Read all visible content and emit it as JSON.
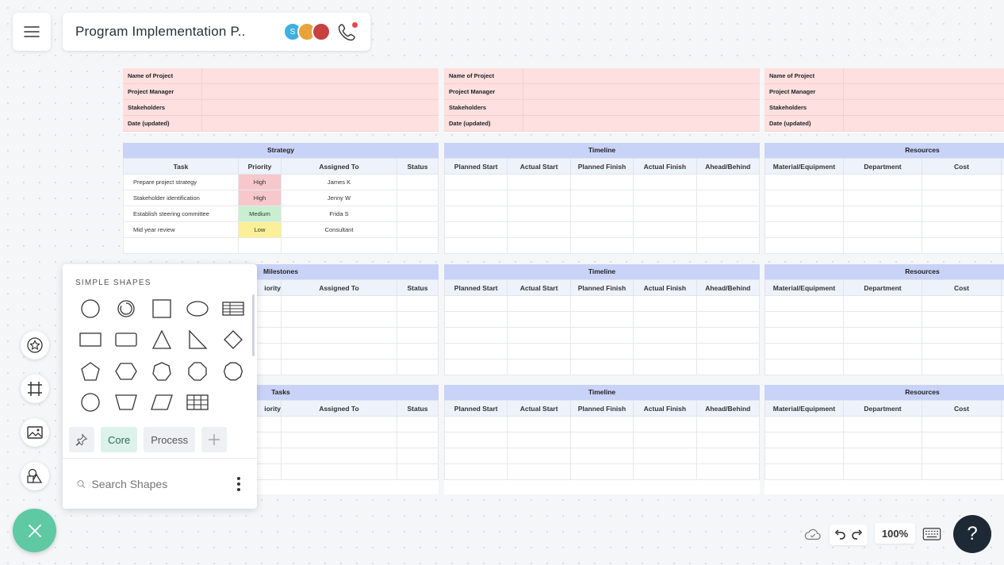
{
  "header": {
    "title": "Program Implementation P..",
    "avatars": [
      {
        "initial": "S"
      },
      {
        "initial": ""
      },
      {
        "initial": ""
      }
    ]
  },
  "info_labels": [
    "Name of Project",
    "Project Manager",
    "Stakeholders",
    "Date (updated)"
  ],
  "col1": {
    "sections": [
      {
        "title": "Strategy",
        "headers": [
          "Task",
          "Priority",
          "Assigned To",
          "Status"
        ]
      },
      {
        "title": "Milestones",
        "headers": [
          "Priority",
          "Assigned To",
          "Status"
        ]
      },
      {
        "title": "Tasks",
        "headers": [
          "Priority",
          "Assigned To",
          "Status"
        ]
      }
    ],
    "strategy_rows": [
      {
        "task": "Prepare project strategy",
        "priority": "High",
        "assigned": "James K",
        "level": "high"
      },
      {
        "task": "Stakeholder identification",
        "priority": "High",
        "assigned": "Jenny W",
        "level": "high"
      },
      {
        "task": "Establish steering committee",
        "priority": "Medium",
        "assigned": "Frida S",
        "level": "med"
      },
      {
        "task": "Mid year review",
        "priority": "Low",
        "assigned": "Consultant",
        "level": "low"
      }
    ],
    "milestones_visible": {
      "priority": "iority"
    }
  },
  "col2": {
    "title": "Timeline",
    "headers": [
      "Planned Start",
      "Actual Start",
      "Planned Finish",
      "Actual Finish",
      "Ahead/Behind"
    ]
  },
  "col3": {
    "title": "Resources",
    "headers": [
      "Material/Equipment",
      "Department",
      "Cost"
    ]
  },
  "shapes_panel": {
    "header": "SIMPLE SHAPES",
    "tabs": [
      "Core",
      "Process"
    ],
    "search_placeholder": "Search Shapes",
    "shapes": [
      "circle",
      "ring",
      "square",
      "ellipse",
      "table-lines",
      "rectangle",
      "rounded-rectangle",
      "triangle",
      "right-triangle",
      "diamond",
      "pentagon",
      "hexagon",
      "heptagon",
      "octagon",
      "decagon",
      "circle-2",
      "trapezoid",
      "parallelogram",
      "grid-table"
    ]
  },
  "bottom_bar": {
    "zoom": "100%"
  },
  "colors": {
    "fab": "#5fc9a4",
    "info_bg": "#fde0df",
    "section_header": "#c9d3f7",
    "high": "#f6c8cb",
    "medium": "#c9efd1",
    "low": "#fbf097"
  }
}
